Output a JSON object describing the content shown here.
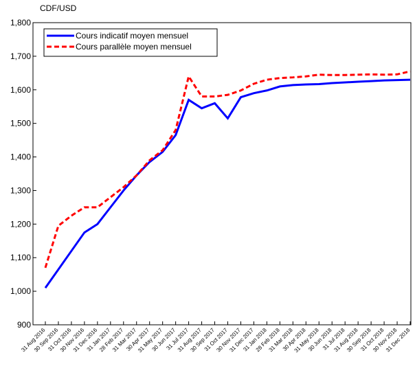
{
  "chart_data": {
    "type": "line",
    "y_label": "CDF/USD",
    "categories": [
      "31 Aug 2016",
      "30 Sep 2016",
      "31 Oct 2016",
      "30 Nov 2016",
      "31 Dec 2016",
      "31 Jan 2017",
      "28 Feb 2017",
      "31 Mar 2017",
      "30 Apr 2017",
      "31 May 2017",
      "30 Jun 2017",
      "31 Jul 2017",
      "31 Aug 2017",
      "30 Sep 2017",
      "31 Oct 2017",
      "30 Nov 2017",
      "31 Dec 2017",
      "31 Jan 2018",
      "28 Feb 2018",
      "31 Mar 2018",
      "30 Apr 2018",
      "31 May 2018",
      "30 Jun 2018",
      "31 Jul 2018",
      "31 Aug 2018",
      "30 Sep 2018",
      "31 Oct 2018",
      "30 Nov 2018",
      "31 Dec 2018"
    ],
    "series": [
      {
        "name": "Cours indicatif moyen mensuel",
        "color": "#0000ff",
        "dash": false,
        "values": [
          1010,
          1065,
          1120,
          1175,
          1200,
          1250,
          1300,
          1345,
          1385,
          1415,
          1465,
          1570,
          1545,
          1560,
          1515,
          1578,
          1590,
          1598,
          1610,
          1614,
          1616,
          1617,
          1620,
          1622,
          1624,
          1626,
          1628,
          1629,
          1630
        ]
      },
      {
        "name": "Cours parallèle moyen mensuel",
        "color": "#ff0000",
        "dash": true,
        "values": [
          1070,
          1195,
          1225,
          1250,
          1250,
          1280,
          1310,
          1345,
          1390,
          1420,
          1480,
          1640,
          1580,
          1580,
          1585,
          1598,
          1618,
          1630,
          1635,
          1637,
          1640,
          1645,
          1644,
          1644,
          1645,
          1646,
          1645,
          1646,
          1655
        ]
      }
    ],
    "ylim": [
      900,
      1800
    ],
    "yticks": [
      {
        "value": 900,
        "label": "900"
      },
      {
        "value": 1000,
        "label": "1,000"
      },
      {
        "value": 1100,
        "label": "1,100"
      },
      {
        "value": 1200,
        "label": "1,200"
      },
      {
        "value": 1300,
        "label": "1,300"
      },
      {
        "value": 1400,
        "label": "1,400"
      },
      {
        "value": 1500,
        "label": "1,500"
      },
      {
        "value": 1600,
        "label": "1,600"
      },
      {
        "value": 1700,
        "label": "1,700"
      },
      {
        "value": 1800,
        "label": "1,800"
      }
    ],
    "grid": false,
    "legend": "upper left"
  }
}
